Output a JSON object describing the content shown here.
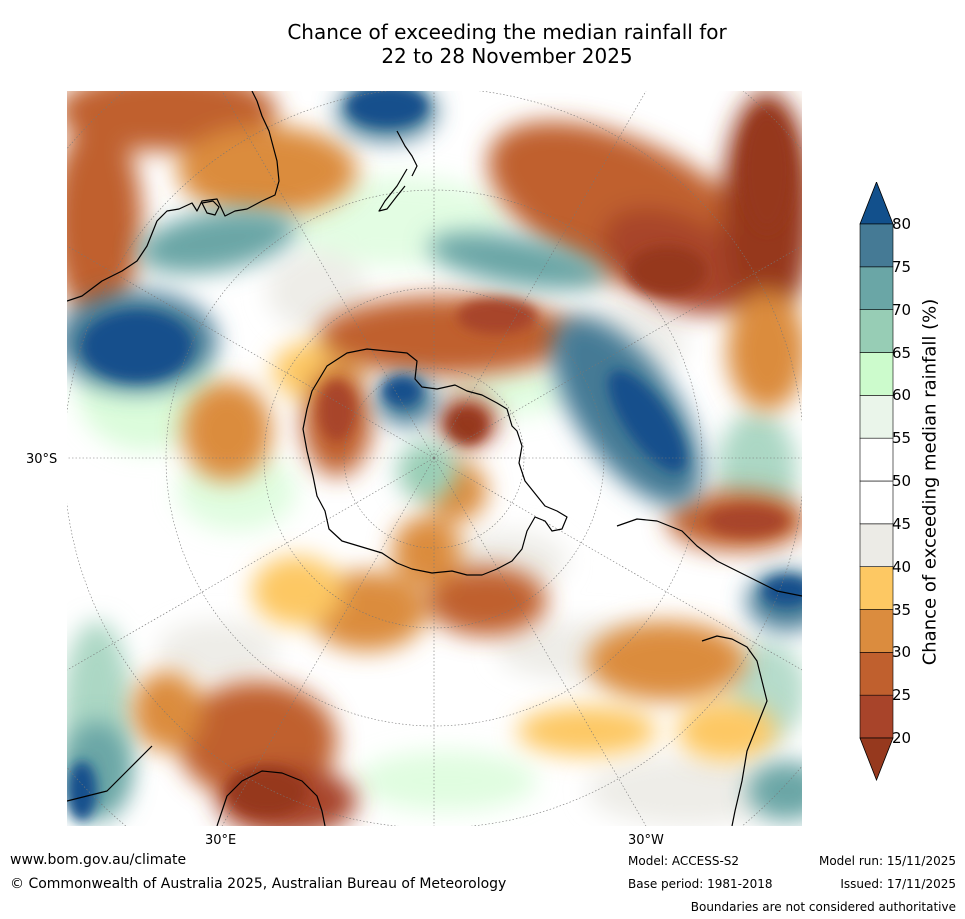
{
  "title": {
    "line1": "Chance of exceeding the median rainfall for",
    "line2": "22 to 28 November 2025"
  },
  "map": {
    "projection": "south-polar-stereographic",
    "lat_label": "30°S",
    "lon_labels": {
      "east": "30°E",
      "west": "30°W"
    }
  },
  "colorbar": {
    "label": "Chance of exceeding median rainfall (%)",
    "ticks": [
      "20",
      "25",
      "30",
      "35",
      "40",
      "45",
      "50",
      "55",
      "60",
      "65",
      "70",
      "75",
      "80"
    ],
    "colors": {
      "under": "#96391e",
      "bins": [
        "#a8442a",
        "#c0602e",
        "#db8c3e",
        "#fdc863",
        "#ecebe6",
        "#ffffff",
        "#ffffff",
        "#eaf5ea",
        "#ccfbcc",
        "#97cdb5",
        "#6aa6a6",
        "#457a95"
      ],
      "over": "#12508c"
    }
  },
  "footer": {
    "url": "www.bom.gov.au/climate",
    "copyright": "© Commonwealth of Australia 2025, Australian Bureau of Meteorology",
    "model": "Model: ACCESS-S2",
    "base_period": "Base period: 1981-2018",
    "model_run": "Model run: 15/11/2025",
    "issued": "Issued: 17/11/2025",
    "disclaimer": "Boundaries are not considered authoritative"
  }
}
